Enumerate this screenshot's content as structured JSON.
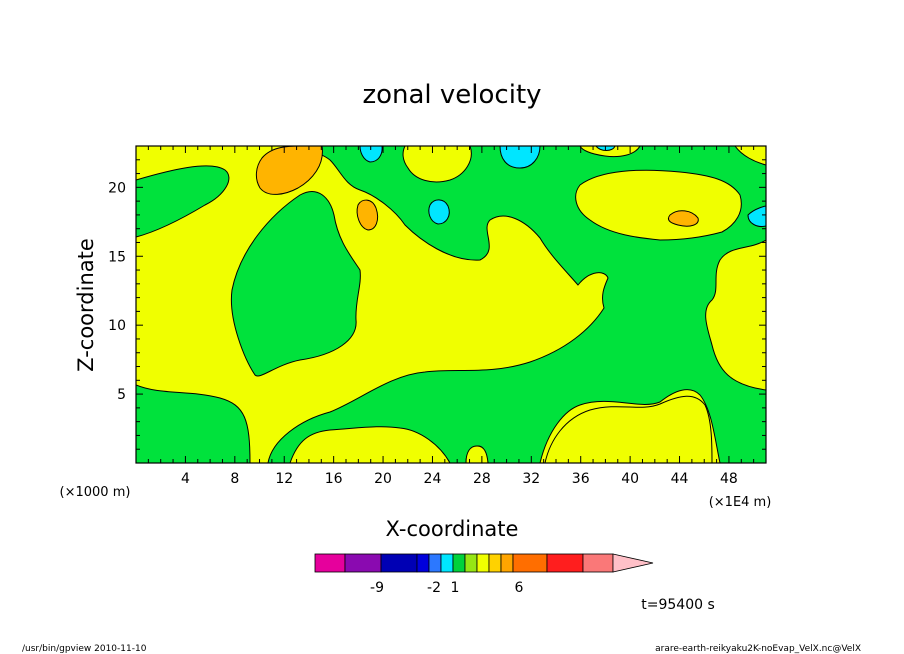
{
  "chart_data": {
    "type": "contour",
    "title": "zonal velocity",
    "xlabel": "X-coordinate",
    "ylabel": "Z-coordinate",
    "x_unit_left": "(×1000 m)",
    "x_unit_right": "(×1E4 m)",
    "x_ticks": [
      "4",
      "8",
      "12",
      "16",
      "20",
      "24",
      "28",
      "32",
      "36",
      "40",
      "44",
      "48"
    ],
    "y_ticks": [
      "5",
      "10",
      "15",
      "20"
    ],
    "xlim": [
      0,
      51
    ],
    "ylim": [
      0,
      23
    ],
    "time_label": "t=95400 s",
    "colorbar": {
      "colors": [
        "#e6009c",
        "#8a0ab0",
        "#0000b4",
        "#0000dc",
        "#2c78ff",
        "#00e6ff",
        "#00d23c",
        "#96e614",
        "#f0ff00",
        "#ffd200",
        "#ffa500",
        "#ff6e00",
        "#ff1e1e",
        "#fa7878",
        "#ffc0c8"
      ],
      "labels": [
        "-9",
        "-2",
        "1",
        "6"
      ]
    },
    "regions": [
      {
        "name": "background-positive",
        "color": "#f0ff00"
      },
      {
        "name": "negative-lobe",
        "color": "#00e23c"
      },
      {
        "name": "strong-positive",
        "color": "#ffb400"
      },
      {
        "name": "strong-negative",
        "color": "#00e6ff"
      }
    ]
  },
  "footer": {
    "left": "/usr/bin/gpview   2010-11-10",
    "right": "arare-earth-reikyaku2K-noEvap_VelX.nc@VelX"
  }
}
